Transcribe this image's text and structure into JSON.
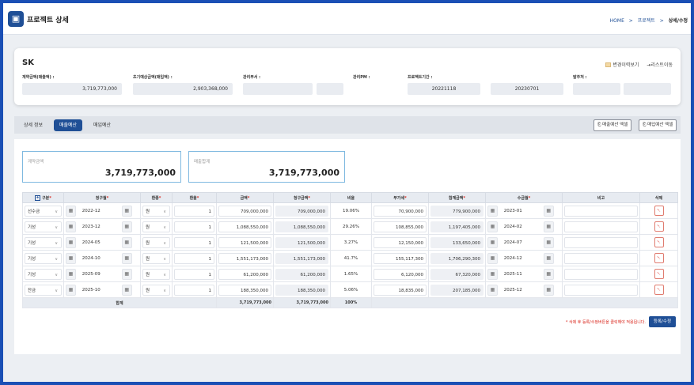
{
  "header": {
    "title": "프로젝트 상세",
    "breadcrumb": [
      "HOME",
      ">",
      "프로젝트",
      ">",
      "상세/수정"
    ]
  },
  "project": {
    "name": "SK",
    "links": {
      "history": "변경이력보기",
      "list": "리스트이동"
    },
    "fields": [
      {
        "label": "계약금액(매출액) :",
        "value": "3,719,773,000"
      },
      {
        "label": "초기예상금액(매입액) :",
        "value": "2,903,368,000"
      },
      {
        "label": "관리부서 :",
        "value": ""
      },
      {
        "label": "관리PM :",
        "value": ""
      },
      {
        "label": "프로젝트기간 :",
        "value": "20221118",
        "value2": "20230701"
      },
      {
        "label": "발주처 :",
        "value": ""
      }
    ]
  },
  "tabs": [
    {
      "label": "상세 정보",
      "active": false
    },
    {
      "label": "매출예산",
      "active": true
    },
    {
      "label": "매입예산",
      "active": false
    }
  ],
  "excel_buttons": {
    "sales": "매출예산 엑셀",
    "purchase": "매입예산 엑셀"
  },
  "summary": {
    "contract": {
      "label": "계약금액",
      "value": "3,719,773,000"
    },
    "sales_total": {
      "label": "매출합계",
      "value": "3,719,773,000"
    }
  },
  "table": {
    "headers": [
      "구분",
      "청구월",
      "환종",
      "환율",
      "금액",
      "청구금액",
      "비율",
      "부가세",
      "합계금액",
      "수금월",
      "비고",
      "삭제"
    ],
    "rows": [
      {
        "type": "선수금",
        "bill_month": "2022-12",
        "currency": "원",
        "rate": "1",
        "amount": "709,000,000",
        "bill_amount": "709,000,000",
        "ratio": "19.06%",
        "vat": "70,900,000",
        "total": "779,900,000",
        "collect_month": "2023-01"
      },
      {
        "type": "기성",
        "bill_month": "2023-12",
        "currency": "원",
        "rate": "1",
        "amount": "1,088,550,000",
        "bill_amount": "1,088,550,000",
        "ratio": "29.26%",
        "vat": "108,855,000",
        "total": "1,197,405,000",
        "collect_month": "2024-02"
      },
      {
        "type": "기성",
        "bill_month": "2024-05",
        "currency": "원",
        "rate": "1",
        "amount": "121,500,000",
        "bill_amount": "121,500,000",
        "ratio": "3.27%",
        "vat": "12,150,000",
        "total": "133,650,000",
        "collect_month": "2024-07"
      },
      {
        "type": "기성",
        "bill_month": "2024-10",
        "currency": "원",
        "rate": "1",
        "amount": "1,551,173,000",
        "bill_amount": "1,551,173,000",
        "ratio": "41.7%",
        "vat": "155,117,300",
        "total": "1,706,290,300",
        "collect_month": "2024-12"
      },
      {
        "type": "기성",
        "bill_month": "2025-09",
        "currency": "원",
        "rate": "1",
        "amount": "61,200,000",
        "bill_amount": "61,200,000",
        "ratio": "1.65%",
        "vat": "6,120,000",
        "total": "67,320,000",
        "collect_month": "2025-11"
      },
      {
        "type": "잔금",
        "bill_month": "2025-10",
        "currency": "원",
        "rate": "1",
        "amount": "188,350,000",
        "bill_amount": "188,350,000",
        "ratio": "5.06%",
        "vat": "18,835,000",
        "total": "207,185,000",
        "collect_month": "2025-12"
      }
    ],
    "total_row": {
      "label": "합계",
      "amount": "3,719,773,000",
      "bill_amount": "3,719,773,000",
      "ratio": "100%"
    }
  },
  "footer": {
    "note": "* 삭제 후 등록/수정버튼을 클릭해야 적용됩니다.",
    "save_label": "등록/수정"
  },
  "colors": {
    "primary": "#1f4f96",
    "required": "#d9261c",
    "frame": "#1a4fb5"
  }
}
